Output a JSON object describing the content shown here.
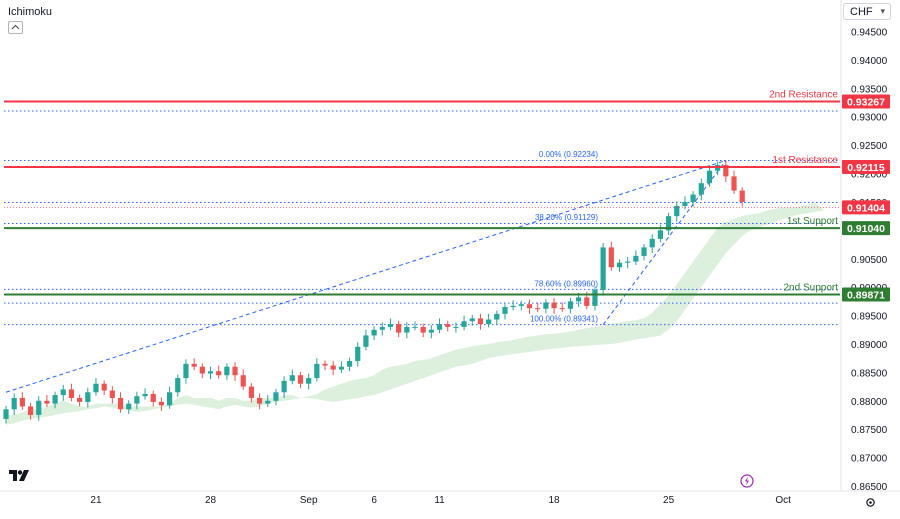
{
  "header": {
    "indicator": "Ichimoku",
    "currency": "CHF"
  },
  "icons": {
    "collapse": "chevron-up-icon",
    "logo": "tradingview-logo-icon",
    "alert": "lightning-icon",
    "settings": "gear-icon"
  },
  "colors": {
    "resistance": "#f23645",
    "support": "#2e7d32",
    "bull": "#26a69a",
    "bear": "#ef5350",
    "fib": "#2962ff",
    "cloud": "#d7ecd7"
  },
  "chart_data": {
    "type": "candlestick",
    "y_axis": {
      "min": 0.865,
      "max": 0.945,
      "ticks": [
        "0.94500",
        "0.94000",
        "0.93500",
        "0.93000",
        "0.92500",
        "0.92000",
        "0.91500",
        "0.91000",
        "0.90500",
        "0.90000",
        "0.89500",
        "0.89000",
        "0.88500",
        "0.88000",
        "0.87500",
        "0.87000",
        "0.86500"
      ]
    },
    "x_axis": {
      "labels": [
        {
          "text": "21",
          "i": 11
        },
        {
          "text": "28",
          "i": 25
        },
        {
          "text": "Sep",
          "i": 37
        },
        {
          "text": "6",
          "i": 45
        },
        {
          "text": "11",
          "i": 53
        },
        {
          "text": "18",
          "i": 67
        },
        {
          "text": "25",
          "i": 81
        },
        {
          "text": "Oct",
          "i": 95
        }
      ]
    },
    "levels": [
      {
        "name": "2nd Resistance",
        "value": 0.93267,
        "label": "0.93267",
        "kind": "resistance"
      },
      {
        "name": "1st Resistance",
        "value": 0.92115,
        "label": "0.92115",
        "kind": "resistance"
      },
      {
        "name": "1st Support",
        "value": 0.9104,
        "label": "0.91040",
        "kind": "support"
      },
      {
        "name": "2nd Support",
        "value": 0.89871,
        "label": "0.89871",
        "kind": "support"
      }
    ],
    "current_price": {
      "value": 0.91404,
      "label": "0.91404"
    },
    "fibonacci": [
      {
        "label": "0.00% (0.92234)",
        "value": 0.92234
      },
      {
        "label": "38.20% (0.91129)",
        "value": 0.91129
      },
      {
        "label": "78.60% (0.89960)",
        "value": 0.8996
      },
      {
        "label": "100.00% (0.89341)",
        "value": 0.89341
      }
    ],
    "dotted_lines": [
      0.931,
      0.9223,
      0.9149,
      0.9112,
      0.8996,
      0.8972,
      0.8934
    ],
    "trendline": {
      "from": {
        "i": 0,
        "y": 0.8815
      },
      "to": {
        "i": 88,
        "y": 0.9223
      }
    },
    "close_series": [
      0.8785,
      0.8805,
      0.879,
      0.8775,
      0.88,
      0.8795,
      0.881,
      0.882,
      0.8805,
      0.8798,
      0.8815,
      0.883,
      0.8818,
      0.8805,
      0.8785,
      0.8795,
      0.8808,
      0.8812,
      0.8798,
      0.8792,
      0.8815,
      0.884,
      0.8865,
      0.886,
      0.8848,
      0.8852,
      0.8845,
      0.886,
      0.8845,
      0.8825,
      0.8805,
      0.8795,
      0.88,
      0.8815,
      0.8835,
      0.8845,
      0.883,
      0.884,
      0.8865,
      0.8862,
      0.8855,
      0.886,
      0.887,
      0.8895,
      0.8915,
      0.8925,
      0.893,
      0.8935,
      0.892,
      0.893,
      0.893,
      0.892,
      0.8925,
      0.8935,
      0.893,
      0.893,
      0.894,
      0.8945,
      0.8935,
      0.8943,
      0.8953,
      0.8965,
      0.8967,
      0.897,
      0.8963,
      0.8962,
      0.8973,
      0.8963,
      0.8962,
      0.8975,
      0.8982,
      0.8967,
      0.8995,
      0.907,
      0.9035,
      0.9043,
      0.9045,
      0.9055,
      0.907,
      0.9085,
      0.91,
      0.9125,
      0.9143,
      0.915,
      0.9163,
      0.9183,
      0.9205,
      0.9215,
      0.9195,
      0.917,
      0.915
    ],
    "cloud_upper": [
      0.8775,
      0.8775,
      0.878,
      0.8785,
      0.8785,
      0.879,
      0.8795,
      0.88,
      0.8795,
      0.879,
      0.879,
      0.8795,
      0.8795,
      0.8795,
      0.8795,
      0.879,
      0.879,
      0.879,
      0.879,
      0.879,
      0.8795,
      0.8805,
      0.881,
      0.8805,
      0.8805,
      0.8805,
      0.88,
      0.8805,
      0.8805,
      0.88,
      0.88,
      0.8805,
      0.8805,
      0.8805,
      0.881,
      0.881,
      0.8805,
      0.8808,
      0.8812,
      0.882,
      0.8825,
      0.883,
      0.8835,
      0.8838,
      0.884,
      0.8845,
      0.8855,
      0.886,
      0.8862,
      0.8865,
      0.887,
      0.8872,
      0.8875,
      0.888,
      0.8885,
      0.889,
      0.8893,
      0.8896,
      0.8898,
      0.89,
      0.8903,
      0.8905,
      0.8907,
      0.891,
      0.8913,
      0.8915,
      0.8917,
      0.8918,
      0.892,
      0.8922,
      0.8925,
      0.8928,
      0.893,
      0.8932,
      0.8935,
      0.8938,
      0.894,
      0.8942,
      0.8945,
      0.8955,
      0.897,
      0.8985,
      0.9005,
      0.9025,
      0.9045,
      0.9065,
      0.9085,
      0.9105,
      0.9115,
      0.912,
      0.9125,
      0.9128,
      0.913,
      0.9135,
      0.9138,
      0.914,
      0.914,
      0.9142,
      0.9145,
      0.9148
    ],
    "cloud_lower": [
      0.8758,
      0.876,
      0.8765,
      0.8768,
      0.877,
      0.8772,
      0.8775,
      0.8778,
      0.878,
      0.8782,
      0.8785,
      0.8787,
      0.879,
      0.8788,
      0.8785,
      0.8783,
      0.878,
      0.8782,
      0.8785,
      0.8788,
      0.879,
      0.8793,
      0.8795,
      0.8793,
      0.879,
      0.8788,
      0.8785,
      0.879,
      0.8793,
      0.879,
      0.8788,
      0.879,
      0.8795,
      0.8798,
      0.88,
      0.8802,
      0.8805,
      0.8805,
      0.8803,
      0.88,
      0.8798,
      0.88,
      0.8803,
      0.8805,
      0.8808,
      0.881,
      0.8815,
      0.882,
      0.8825,
      0.883,
      0.8835,
      0.884,
      0.8845,
      0.885,
      0.8855,
      0.886,
      0.8862,
      0.8865,
      0.887,
      0.8875,
      0.8878,
      0.888,
      0.8882,
      0.8884,
      0.8886,
      0.8888,
      0.889,
      0.8892,
      0.8893,
      0.8895,
      0.8896,
      0.8897,
      0.8898,
      0.8899,
      0.89,
      0.8902,
      0.8905,
      0.8908,
      0.891,
      0.8912,
      0.8915,
      0.8925,
      0.894,
      0.896,
      0.898,
      0.9,
      0.902,
      0.904,
      0.906,
      0.9075,
      0.909,
      0.91,
      0.9105,
      0.911,
      0.9115,
      0.912,
      0.9125,
      0.9128,
      0.913,
      0.9133,
      0.9135
    ]
  }
}
